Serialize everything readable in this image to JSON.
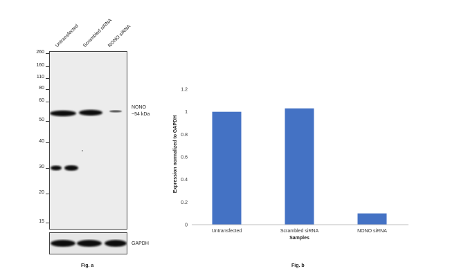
{
  "figure_a": {
    "caption": "Fig. a",
    "lanes": [
      "Untransfected",
      "Scrambled siRNA",
      "NONO siRNA"
    ],
    "mw_markers": [
      "260",
      "160",
      "110",
      "80",
      "60",
      "50",
      "40",
      "30",
      "20",
      "15"
    ],
    "target_label": "NONO",
    "target_size": "~54 kDa",
    "loading_control": "GAPDH"
  },
  "figure_b": {
    "caption": "Fig. b"
  },
  "chart_data": {
    "type": "bar",
    "categories": [
      "Untransfected",
      "Scrambled siRNA",
      "NONO siRNA"
    ],
    "values": [
      1.0,
      1.03,
      0.1
    ],
    "xlabel": "Samples",
    "ylabel": "Expression normalized to GAPDH",
    "ylim": [
      0,
      1.2
    ],
    "yticks": [
      "0",
      "0.2",
      "0.4",
      "0.6",
      "0.8",
      "1",
      "1.2"
    ],
    "bar_color": "#4472c4",
    "grid": false
  }
}
